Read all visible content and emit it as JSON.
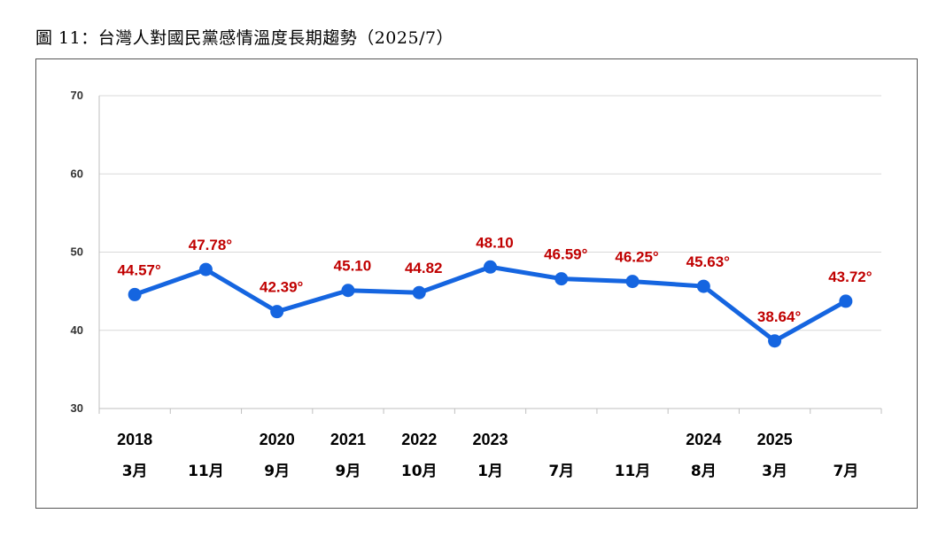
{
  "figure": {
    "caption": "圖 11：台灣人對國民黨感情溫度長期趨勢（2025/7）"
  },
  "colors": {
    "line": "#1565e0",
    "label": "#c00000",
    "grid": "#d9d9d9",
    "axis": "#bfbfbf",
    "text": "#000000"
  },
  "chart_data": {
    "type": "line",
    "title": "圖 11：台灣人對國民黨感情溫度長期趨勢（2025/7）",
    "xlabel": "",
    "ylabel": "",
    "ylim": [
      30,
      70
    ],
    "yticks": [
      "30",
      "40",
      "50",
      "60",
      "70"
    ],
    "grid": true,
    "legend": "none",
    "categories": [
      {
        "year": "2018",
        "month": "3月"
      },
      {
        "year": "",
        "month": "11月"
      },
      {
        "year": "2020",
        "month": "9月"
      },
      {
        "year": "2021",
        "month": "9月"
      },
      {
        "year": "2022",
        "month": "10月"
      },
      {
        "year": "2023",
        "month": "1月"
      },
      {
        "year": "",
        "month": "7月"
      },
      {
        "year": "",
        "month": "11月"
      },
      {
        "year": "2024",
        "month": "8月"
      },
      {
        "year": "2025",
        "month": "3月"
      },
      {
        "year": "",
        "month": "7月"
      }
    ],
    "series": [
      {
        "values": [
          44.57,
          47.78,
          42.39,
          45.1,
          44.82,
          48.1,
          46.59,
          46.25,
          45.63,
          38.64,
          43.72
        ],
        "labels": [
          "44.57°",
          "47.78°",
          "42.39°",
          "45.10",
          "44.82",
          "48.10",
          "46.59°",
          "46.25°",
          "45.63°",
          "38.64°",
          "43.72°"
        ]
      }
    ]
  }
}
